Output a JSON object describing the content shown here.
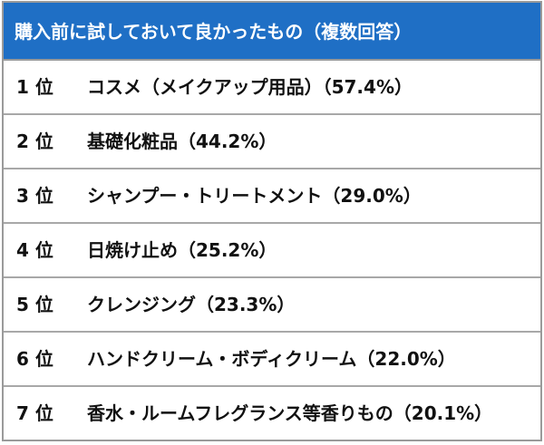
{
  "table": {
    "title": "購入前に試しておいて良かったもの（複数回答）",
    "rows": [
      [
        "1 位",
        "コスメ（メイクアップ用品）（57.4%）"
      ],
      [
        "2 位",
        "基礎化粧品（44.2%）"
      ],
      [
        "3 位",
        "シャンプー・トリートメント（29.0%）"
      ],
      [
        "4 位",
        "日焼け止め（25.2%）"
      ],
      [
        "5 位",
        "クレンジング（23.3%）"
      ],
      [
        "6 位",
        "ハンドクリーム・ボディクリーム（22.0%）"
      ],
      [
        "7 位",
        "香水・ルームフレグランス等香りもの（20.1%）"
      ]
    ]
  }
}
